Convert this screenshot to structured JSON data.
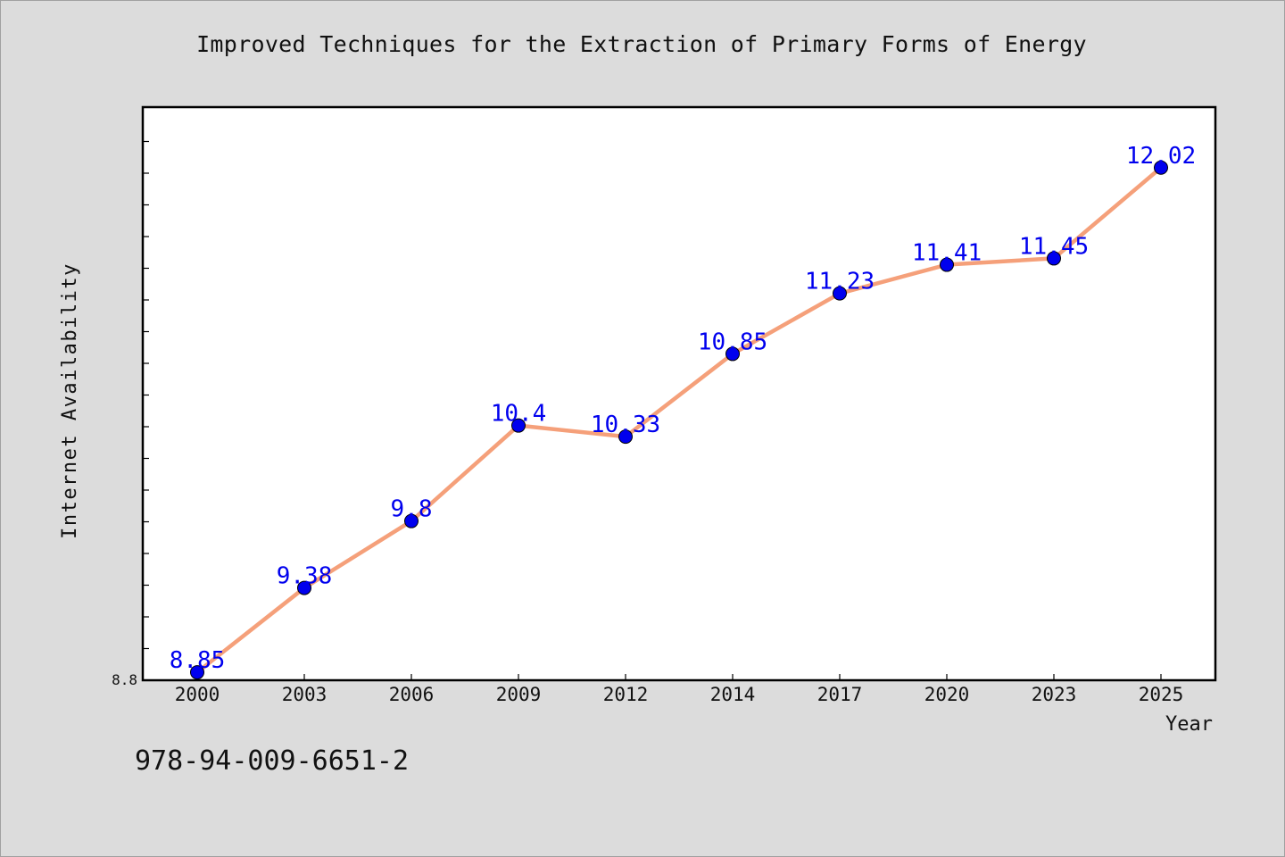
{
  "chart_data": {
    "type": "line",
    "title": "Improved Techniques for the Extraction of Primary Forms of Energy",
    "xlabel": "Year",
    "ylabel": "Internet Availability",
    "categories": [
      "2000",
      "2003",
      "2006",
      "2009",
      "2012",
      "2014",
      "2017",
      "2020",
      "2023",
      "2025"
    ],
    "series": [
      {
        "values": [
          8.85,
          9.38,
          9.8,
          10.4,
          10.33,
          10.85,
          11.23,
          11.41,
          11.45,
          12.02
        ],
        "data_labels": [
          "8.85",
          "9.38",
          "9.8",
          "10.4",
          "10.33",
          "10.85",
          "11.23",
          "11.41",
          "11.45",
          "12.02"
        ],
        "line_color": "#f5a07a",
        "marker_color": "#0000ee",
        "label_color": "#0000ee"
      }
    ],
    "y_tick_labels": [
      "8.8"
    ],
    "ylim": [
      8.8,
      12.4
    ],
    "grid": false,
    "legend": "none"
  },
  "footer_code": "978-94-009-6651-2",
  "colors": {
    "background": "#dcdcdc",
    "plot_area": "#ffffff",
    "axis": "#000000"
  }
}
